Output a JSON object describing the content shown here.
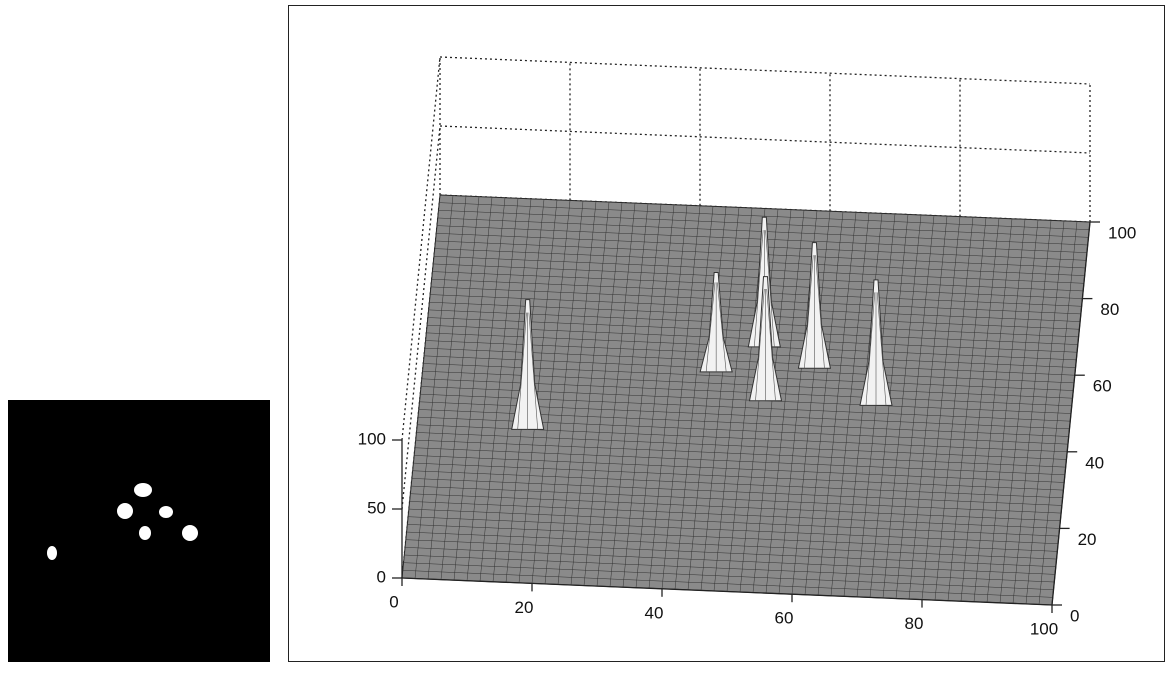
{
  "chart_data": {
    "type": "surface3d",
    "xlim": [
      0,
      100
    ],
    "xticks": [
      0,
      20,
      40,
      60,
      80,
      100
    ],
    "ylim": [
      0,
      100
    ],
    "yticks": [
      0,
      20,
      40,
      60,
      80,
      100
    ],
    "zlim": [
      0,
      100
    ],
    "zticks": [
      0,
      50,
      100
    ],
    "peaks": {
      "x": [
        17,
        45,
        53,
        52,
        60,
        70
      ],
      "y": [
        40,
        57,
        50,
        64,
        59,
        50
      ],
      "z": [
        94,
        72,
        90,
        94,
        91,
        91
      ]
    },
    "surface_color": "#8a8a8a",
    "peak_color": "#f2f2f2",
    "grid": true
  }
}
